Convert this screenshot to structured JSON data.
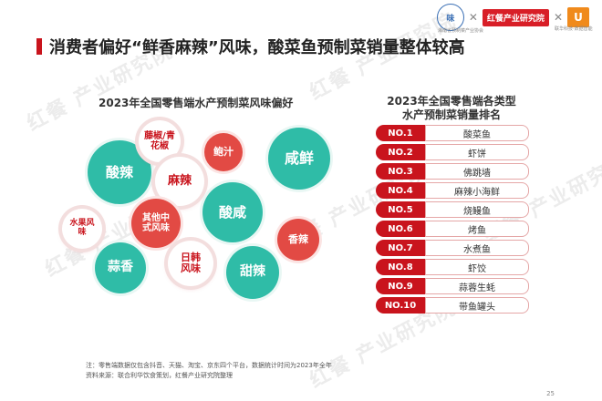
{
  "header": {
    "title": "消费者偏好“鲜香麻辣”风味，酸菜鱼预制菜销量整体较高",
    "logo_seal_text": "味",
    "logo_seal_caption": "海南省预制菜产业协会",
    "logo_hc_text": "红餐产业研究院",
    "logo_unicom_text": "U",
    "logo_unicom_caption": "联华科技·数据智能"
  },
  "watermark": {
    "text_brand": "红餐",
    "text_dept": "产业研究院"
  },
  "left": {
    "title": "2023年全国零售端水产预制菜风味偏好",
    "bubbles": [
      {
        "label": "酸辣"
      },
      {
        "label": "藤椒/青花椒"
      },
      {
        "label": "麻辣"
      },
      {
        "label": "鲍汁"
      },
      {
        "label": "咸鲜"
      },
      {
        "label": "水果风味"
      },
      {
        "label": "其他中式风味"
      },
      {
        "label": "酸咸"
      },
      {
        "label": "蒜香"
      },
      {
        "label": "日韩风味"
      },
      {
        "label": "香辣"
      },
      {
        "label": "甜辣"
      }
    ]
  },
  "right": {
    "title_line1": "2023年全国零售端各类型",
    "title_line2": "水产预制菜销量排名",
    "ranking": [
      {
        "rank": "NO.1",
        "name": "酸菜鱼"
      },
      {
        "rank": "NO.2",
        "name": "虾饼"
      },
      {
        "rank": "NO.3",
        "name": "佛跳墙"
      },
      {
        "rank": "NO.4",
        "name": "麻辣小海鲜"
      },
      {
        "rank": "NO.5",
        "name": "烧鳗鱼"
      },
      {
        "rank": "NO.6",
        "name": "烤鱼"
      },
      {
        "rank": "NO.7",
        "name": "水煮鱼"
      },
      {
        "rank": "NO.8",
        "name": "虾饺"
      },
      {
        "rank": "NO.9",
        "name": "蒜蓉生蚝"
      },
      {
        "rank": "NO.10",
        "name": "带鱼罐头"
      }
    ]
  },
  "footer": {
    "note": "注：零售端数据仅包含抖音、天猫、淘宝、京东四个平台，数据统计时间为2023年全年",
    "source": "资料来源：联合利华饮食策划，红餐产业研究院整理",
    "page_number": "25"
  },
  "colors": {
    "brand_red": "#c9141d",
    "teal": "#2fbca7",
    "coral": "#e24a44"
  }
}
